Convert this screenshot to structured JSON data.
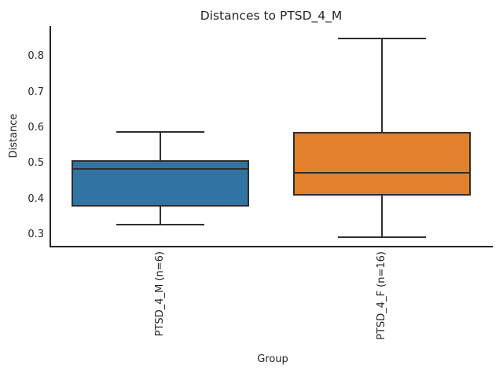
{
  "chart_data": {
    "type": "box",
    "title": "Distances to PTSD_4_M",
    "xlabel": "Group",
    "ylabel": "Distance",
    "y_ticks": [
      0.3,
      0.4,
      0.5,
      0.6,
      0.7,
      0.8
    ],
    "ylim": [
      0.27,
      0.886
    ],
    "grid": false,
    "legend": "none",
    "categories": [
      "PTSD_4_M (n=6)",
      "PTSD_4_F (n=16)"
    ],
    "series": [
      {
        "name": "PTSD_4_M (n=6)",
        "whisker_low": 0.33,
        "q1": 0.38,
        "median": 0.485,
        "q3": 0.51,
        "whisker_high": 0.59,
        "fill_color": "#3274a1",
        "outliers": []
      },
      {
        "name": "PTSD_4_F (n=16)",
        "whisker_low": 0.295,
        "q1": 0.41,
        "median": 0.475,
        "q3": 0.59,
        "whisker_high": 0.85,
        "fill_color": "#e1812c",
        "outliers": []
      }
    ],
    "edge_color": "#2e2e2e",
    "spine_color": "#262626",
    "text_color": "#262626",
    "background_color": "#ffffff"
  }
}
